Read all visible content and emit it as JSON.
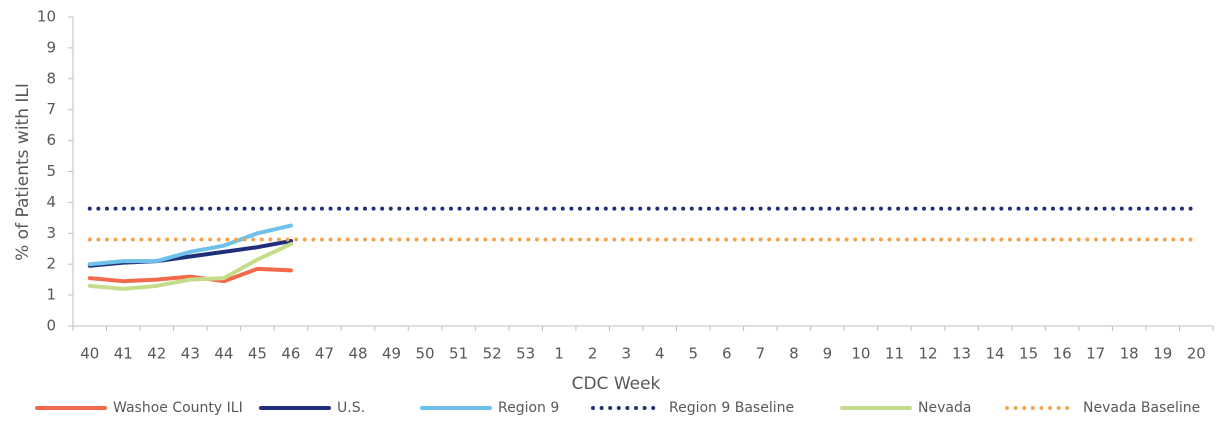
{
  "chart_data": {
    "type": "line",
    "x_label": "CDC Week",
    "y_label": "% of Patients with ILI",
    "categories": [
      "40",
      "41",
      "42",
      "43",
      "44",
      "45",
      "46",
      "47",
      "48",
      "49",
      "50",
      "51",
      "52",
      "53",
      "1",
      "2",
      "3",
      "4",
      "5",
      "6",
      "7",
      "8",
      "9",
      "10",
      "11",
      "12",
      "13",
      "14",
      "15",
      "16",
      "17",
      "18",
      "19",
      "20"
    ],
    "ylim": [
      0,
      10
    ],
    "yticks": [
      0,
      1,
      2,
      3,
      4,
      5,
      6,
      7,
      8,
      9,
      10
    ],
    "legend": "bottom",
    "series": [
      {
        "name": "Washoe County ILI",
        "color": "#f26a4b",
        "style": "solid",
        "values": [
          1.55,
          1.45,
          1.5,
          1.6,
          1.45,
          1.85,
          1.8,
          null,
          null,
          null,
          null,
          null,
          null,
          null,
          null,
          null,
          null,
          null,
          null,
          null,
          null,
          null,
          null,
          null,
          null,
          null,
          null,
          null,
          null,
          null,
          null,
          null,
          null,
          null
        ]
      },
      {
        "name": "U.S.",
        "color": "#1f2f7a",
        "style": "solid",
        "values": [
          1.95,
          2.05,
          2.1,
          2.25,
          2.4,
          2.55,
          2.75,
          null,
          null,
          null,
          null,
          null,
          null,
          null,
          null,
          null,
          null,
          null,
          null,
          null,
          null,
          null,
          null,
          null,
          null,
          null,
          null,
          null,
          null,
          null,
          null,
          null,
          null,
          null
        ]
      },
      {
        "name": "Region 9",
        "color": "#6ec1ea",
        "style": "solid",
        "values": [
          2.0,
          2.1,
          2.1,
          2.4,
          2.6,
          3.0,
          3.25,
          null,
          null,
          null,
          null,
          null,
          null,
          null,
          null,
          null,
          null,
          null,
          null,
          null,
          null,
          null,
          null,
          null,
          null,
          null,
          null,
          null,
          null,
          null,
          null,
          null,
          null,
          null
        ]
      },
      {
        "name": "Region 9 Baseline",
        "color": "#1f2f7a",
        "style": "dotted",
        "values": [
          3.8,
          3.8,
          3.8,
          3.8,
          3.8,
          3.8,
          3.8,
          3.8,
          3.8,
          3.8,
          3.8,
          3.8,
          3.8,
          3.8,
          3.8,
          3.8,
          3.8,
          3.8,
          3.8,
          3.8,
          3.8,
          3.8,
          3.8,
          3.8,
          3.8,
          3.8,
          3.8,
          3.8,
          3.8,
          3.8,
          3.8,
          3.8,
          3.8,
          3.8
        ]
      },
      {
        "name": "Nevada",
        "color": "#c5dd8a",
        "style": "solid",
        "values": [
          1.3,
          1.2,
          1.3,
          1.5,
          1.55,
          2.15,
          2.65,
          null,
          null,
          null,
          null,
          null,
          null,
          null,
          null,
          null,
          null,
          null,
          null,
          null,
          null,
          null,
          null,
          null,
          null,
          null,
          null,
          null,
          null,
          null,
          null,
          null,
          null,
          null
        ]
      },
      {
        "name": "Nevada Baseline",
        "color": "#f4a450",
        "style": "dotted",
        "values": [
          2.8,
          2.8,
          2.8,
          2.8,
          2.8,
          2.8,
          2.8,
          2.8,
          2.8,
          2.8,
          2.8,
          2.8,
          2.8,
          2.8,
          2.8,
          2.8,
          2.8,
          2.8,
          2.8,
          2.8,
          2.8,
          2.8,
          2.8,
          2.8,
          2.8,
          2.8,
          2.8,
          2.8,
          2.8,
          2.8,
          2.8,
          2.8,
          2.8,
          2.8
        ]
      }
    ]
  }
}
